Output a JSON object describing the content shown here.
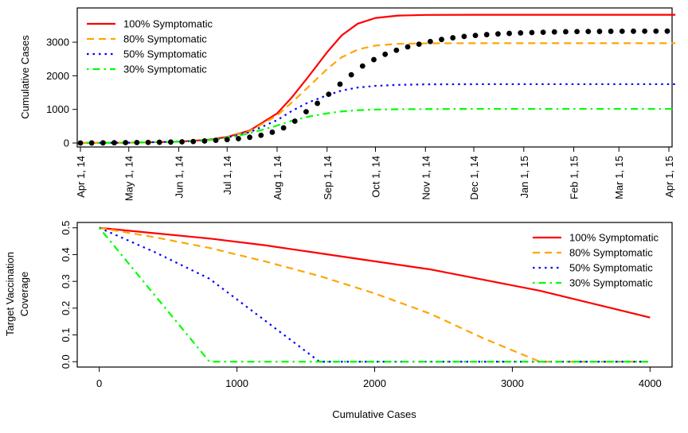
{
  "chart_data": [
    {
      "type": "line",
      "ylabel": "Cumulative Cases",
      "y_ticks": [
        0,
        1000,
        2000,
        3000
      ],
      "y_tick_labels": [
        "0",
        "1000",
        "2000",
        "3000"
      ],
      "ylim": [
        0,
        3900
      ],
      "x_tick_labels": [
        "Apr 1, 14",
        "May 1, 14",
        "Jun 1, 14",
        "Jul 1, 14",
        "Aug 1, 14",
        "Sep 1, 14",
        "Oct 1, 14",
        "Nov 1, 14",
        "Dec 1, 14",
        "Jan 1, 15",
        "Feb 1, 15",
        "Mar 1, 15",
        "Apr 1, 15"
      ],
      "x_tick_dates": [
        "2014-04-01",
        "2014-05-01",
        "2014-06-01",
        "2014-07-01",
        "2014-08-01",
        "2014-09-01",
        "2014-10-01",
        "2014-11-01",
        "2014-12-01",
        "2015-01-01",
        "2015-02-01",
        "2015-03-01",
        "2015-04-01"
      ],
      "xlim": [
        "2014-04-01",
        "2015-04-01"
      ],
      "legend_position": "top-left",
      "series": [
        {
          "name": "100% Symptomatic",
          "color": "#ff0000",
          "style": "solid",
          "x": [
            "2014-04-01",
            "2014-05-01",
            "2014-06-01",
            "2014-06-20",
            "2014-07-01",
            "2014-07-15",
            "2014-08-01",
            "2014-08-10",
            "2014-08-20",
            "2014-09-01",
            "2014-09-10",
            "2014-09-20",
            "2014-10-01",
            "2014-10-15",
            "2014-11-01",
            "2014-12-01",
            "2015-01-01",
            "2015-02-01",
            "2015-03-01",
            "2015-04-05"
          ],
          "values": [
            0,
            10,
            40,
            100,
            180,
            370,
            880,
            1350,
            1950,
            2700,
            3200,
            3550,
            3720,
            3790,
            3810,
            3815,
            3815,
            3815,
            3815,
            3815
          ]
        },
        {
          "name": "80% Symptomatic",
          "color": "#ffa500",
          "style": "dashed",
          "x": [
            "2014-04-01",
            "2014-05-01",
            "2014-06-01",
            "2014-06-20",
            "2014-07-01",
            "2014-07-15",
            "2014-08-01",
            "2014-08-10",
            "2014-08-20",
            "2014-09-01",
            "2014-09-10",
            "2014-09-20",
            "2014-10-01",
            "2014-10-15",
            "2014-11-01",
            "2014-12-01",
            "2015-01-01",
            "2015-02-01",
            "2015-03-01",
            "2015-04-05"
          ],
          "values": [
            0,
            10,
            40,
            95,
            170,
            350,
            820,
            1200,
            1650,
            2200,
            2550,
            2780,
            2900,
            2950,
            2965,
            2970,
            2970,
            2970,
            2970,
            2970
          ]
        },
        {
          "name": "50% Symptomatic",
          "color": "#0000ff",
          "style": "dotted",
          "x": [
            "2014-04-01",
            "2014-05-01",
            "2014-06-01",
            "2014-06-20",
            "2014-07-01",
            "2014-07-15",
            "2014-08-01",
            "2014-08-10",
            "2014-08-20",
            "2014-09-01",
            "2014-09-10",
            "2014-09-20",
            "2014-10-01",
            "2014-10-15",
            "2014-11-01",
            "2014-12-01",
            "2015-01-01",
            "2015-02-01",
            "2015-03-01",
            "2015-04-05"
          ],
          "values": [
            0,
            10,
            40,
            90,
            160,
            320,
            680,
            950,
            1200,
            1420,
            1560,
            1650,
            1700,
            1730,
            1745,
            1750,
            1750,
            1750,
            1750,
            1750
          ]
        },
        {
          "name": "30% Symptomatic",
          "color": "#00ff00",
          "style": "dotdash",
          "x": [
            "2014-04-01",
            "2014-05-01",
            "2014-06-01",
            "2014-06-20",
            "2014-07-01",
            "2014-07-15",
            "2014-08-01",
            "2014-08-10",
            "2014-08-20",
            "2014-09-01",
            "2014-09-10",
            "2014-09-20",
            "2014-10-01",
            "2014-10-15",
            "2014-11-01",
            "2014-12-01",
            "2015-01-01",
            "2015-02-01",
            "2015-03-01",
            "2015-04-05"
          ],
          "values": [
            0,
            10,
            40,
            90,
            150,
            290,
            520,
            660,
            780,
            880,
            940,
            975,
            995,
            1005,
            1010,
            1015,
            1015,
            1015,
            1015,
            1015
          ]
        },
        {
          "name": "",
          "color": "#000000",
          "style": "points",
          "x": [
            "2014-04-01",
            "2014-04-08",
            "2014-04-15",
            "2014-04-22",
            "2014-04-29",
            "2014-05-06",
            "2014-05-13",
            "2014-05-20",
            "2014-05-27",
            "2014-06-03",
            "2014-06-10",
            "2014-06-17",
            "2014-06-24",
            "2014-07-01",
            "2014-07-08",
            "2014-07-15",
            "2014-07-22",
            "2014-07-29",
            "2014-08-05",
            "2014-08-12",
            "2014-08-19",
            "2014-08-26",
            "2014-09-02",
            "2014-09-09",
            "2014-09-16",
            "2014-09-23",
            "2014-09-30",
            "2014-10-07",
            "2014-10-14",
            "2014-10-21",
            "2014-10-28",
            "2014-11-04",
            "2014-11-11",
            "2014-11-18",
            "2014-11-25",
            "2014-12-02",
            "2014-12-09",
            "2014-12-16",
            "2014-12-23",
            "2014-12-30",
            "2015-01-06",
            "2015-01-13",
            "2015-01-20",
            "2015-01-27",
            "2015-02-03",
            "2015-02-10",
            "2015-02-17",
            "2015-02-24",
            "2015-03-03",
            "2015-03-10",
            "2015-03-17",
            "2015-03-24",
            "2015-03-31"
          ],
          "values": [
            0,
            2,
            5,
            8,
            12,
            15,
            18,
            22,
            28,
            35,
            45,
            60,
            80,
            100,
            130,
            170,
            230,
            320,
            450,
            650,
            930,
            1180,
            1450,
            1750,
            2030,
            2290,
            2480,
            2640,
            2760,
            2860,
            2940,
            3020,
            3080,
            3130,
            3170,
            3200,
            3225,
            3245,
            3260,
            3275,
            3285,
            3295,
            3305,
            3310,
            3315,
            3318,
            3320,
            3322,
            3324,
            3325,
            3326,
            3327,
            3328
          ]
        }
      ]
    },
    {
      "type": "line",
      "xlabel": "Cumulative Cases",
      "ylabel_lines": [
        "Target Vaccination",
        "Coverage"
      ],
      "x_ticks": [
        0,
        1000,
        2000,
        3000,
        4000
      ],
      "x_tick_labels": [
        "0",
        "1000",
        "2000",
        "3000",
        "4000"
      ],
      "y_ticks": [
        0,
        0.1,
        0.2,
        0.3,
        0.4,
        0.5
      ],
      "y_tick_labels": [
        "0.0",
        "0.1",
        "0.2",
        "0.3",
        "0.4",
        "0.5"
      ],
      "xlim": [
        -160,
        4160
      ],
      "ylim": [
        -0.02,
        0.52
      ],
      "legend_position": "top-right",
      "series": [
        {
          "name": "100% Symptomatic",
          "color": "#ff0000",
          "style": "solid",
          "x": [
            0,
            400,
            800,
            1200,
            1600,
            2000,
            2400,
            2800,
            3200,
            3600,
            4000
          ],
          "values": [
            0.5,
            0.48,
            0.46,
            0.435,
            0.405,
            0.375,
            0.345,
            0.305,
            0.265,
            0.215,
            0.165
          ]
        },
        {
          "name": "80% Symptomatic",
          "color": "#ffa500",
          "style": "dashed",
          "x": [
            0,
            400,
            800,
            1200,
            1600,
            2000,
            2400,
            2800,
            3200,
            4000
          ],
          "values": [
            0.5,
            0.465,
            0.425,
            0.375,
            0.32,
            0.255,
            0.18,
            0.085,
            0,
            0
          ]
        },
        {
          "name": "50% Symptomatic",
          "color": "#0000ff",
          "style": "dotted",
          "x": [
            0,
            400,
            800,
            1200,
            1600,
            4000
          ],
          "values": [
            0.5,
            0.41,
            0.31,
            0.155,
            0,
            0
          ]
        },
        {
          "name": "30% Symptomatic",
          "color": "#00ff00",
          "style": "dotdash",
          "x": [
            0,
            400,
            800,
            4000
          ],
          "values": [
            0.5,
            0.25,
            0,
            0
          ]
        }
      ]
    }
  ]
}
